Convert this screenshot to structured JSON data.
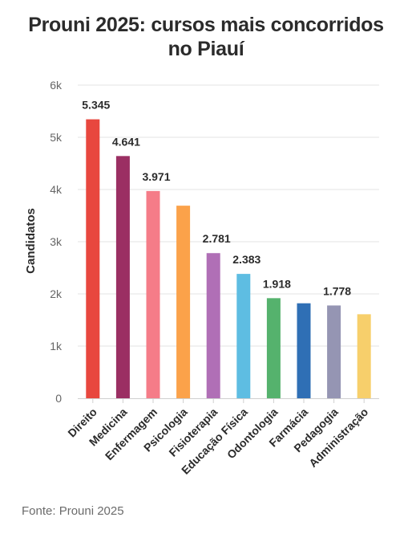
{
  "title_line1": "Prouni 2025: cursos mais concorridos",
  "title_line2": "no Piauí",
  "source": "Fonte: Prouni 2025",
  "chart_data": {
    "type": "bar",
    "ylabel": "Candidatos",
    "ylim": [
      0,
      6000
    ],
    "yticks": [
      0,
      1000,
      2000,
      3000,
      4000,
      5000,
      6000
    ],
    "ytick_labels": [
      "0",
      "1k",
      "2k",
      "3k",
      "4k",
      "5k",
      "6k"
    ],
    "grid": true,
    "categories": [
      "Direito",
      "Medicina",
      "Enfermagem",
      "Psicologia",
      "Fisioterapia",
      "Educação Física",
      "Odontologia",
      "Farmácia",
      "Pedagogia",
      "Administração"
    ],
    "values": [
      5345,
      4641,
      3971,
      3690,
      2781,
      2383,
      1918,
      1820,
      1778,
      1610
    ],
    "data_labels": [
      "5.345",
      "4.641",
      "3.971",
      "",
      "2.781",
      "2.383",
      "1.918",
      "",
      "1.778",
      ""
    ],
    "colors": [
      "#e8473e",
      "#9b2f63",
      "#f57c88",
      "#fba24a",
      "#b06fb6",
      "#5ebde2",
      "#55b26d",
      "#2f6fb5",
      "#9595b3",
      "#f7cf6b"
    ]
  }
}
